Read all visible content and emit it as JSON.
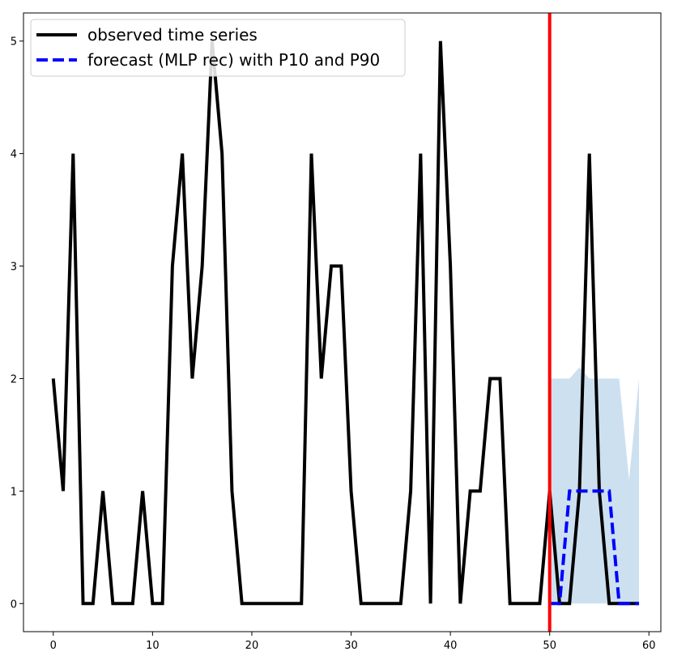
{
  "chart_data": {
    "type": "line",
    "title": "",
    "xlabel": "",
    "ylabel": "",
    "xlim": [
      -3,
      61.2
    ],
    "ylim": [
      -0.25,
      5.25
    ],
    "xticks": [
      0,
      10,
      20,
      30,
      40,
      50,
      60
    ],
    "yticks": [
      0,
      1,
      2,
      3,
      4,
      5
    ],
    "grid": false,
    "legend_position": "top-left",
    "series": [
      {
        "name": "observed time series",
        "color": "#000000",
        "style": "solid",
        "x": [
          0,
          1,
          2,
          3,
          4,
          5,
          6,
          7,
          8,
          9,
          10,
          11,
          12,
          13,
          14,
          15,
          16,
          17,
          18,
          19,
          20,
          21,
          22,
          23,
          24,
          25,
          26,
          27,
          28,
          29,
          30,
          31,
          32,
          33,
          34,
          35,
          36,
          37,
          38,
          39,
          40,
          41,
          42,
          43,
          44,
          45,
          46,
          47,
          48,
          49,
          50,
          51,
          52,
          53,
          54,
          55,
          56,
          57,
          58,
          59
        ],
        "values": [
          2,
          1,
          4,
          0,
          0,
          1,
          0,
          0,
          0,
          1,
          0,
          0,
          3,
          4,
          2,
          3,
          5,
          4,
          1,
          0,
          0,
          0,
          0,
          0,
          0,
          0,
          4,
          2,
          3,
          3,
          1,
          0,
          0,
          0,
          0,
          0,
          1,
          4,
          0,
          5,
          3,
          0,
          1,
          1,
          2,
          2,
          0,
          0,
          0,
          0,
          1,
          0,
          0,
          1,
          4,
          1,
          0,
          0,
          0,
          0
        ]
      },
      {
        "name": "forecast (MLP rec) with P10 and P90",
        "color": "#0000ff",
        "style": "dashed",
        "x": [
          50,
          51,
          52,
          53,
          54,
          55,
          56,
          57,
          58,
          59
        ],
        "values": [
          0,
          0,
          1,
          1,
          1,
          1,
          1,
          0,
          0,
          0
        ]
      }
    ],
    "band": {
      "color": "#cce0f0",
      "x": [
        50,
        51,
        52,
        53,
        54,
        55,
        56,
        57,
        58,
        59
      ],
      "p10": [
        0,
        0,
        0,
        0,
        0,
        0,
        0,
        0,
        0,
        0
      ],
      "p90": [
        2,
        2,
        2,
        2.1,
        2,
        2,
        2,
        2,
        1.1,
        2
      ]
    },
    "vline": {
      "x": 50,
      "color": "#ff0000"
    }
  }
}
